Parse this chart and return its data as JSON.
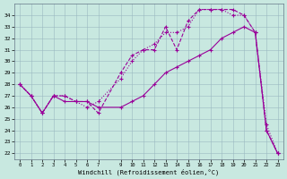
{
  "xlabel": "Windchill (Refroidissement éolien,°C)",
  "bg_color": "#c8e8e0",
  "grid_color": "#9ab8c0",
  "line_color": "#990099",
  "xlim": [
    -0.5,
    23.5
  ],
  "ylim": [
    21.5,
    35.0
  ],
  "yticks": [
    22,
    23,
    24,
    25,
    26,
    27,
    28,
    29,
    30,
    31,
    32,
    33,
    34
  ],
  "xticks": [
    0,
    1,
    2,
    3,
    4,
    5,
    6,
    7,
    9,
    10,
    11,
    12,
    13,
    14,
    15,
    16,
    17,
    18,
    19,
    20,
    21,
    22,
    23
  ],
  "line1_x": [
    0,
    1,
    2,
    3,
    4,
    5,
    6,
    7,
    9,
    10,
    11,
    12,
    13,
    14,
    15,
    16,
    17,
    18,
    19,
    20,
    21,
    22,
    23
  ],
  "line1_y": [
    28.0,
    27.0,
    25.5,
    27.0,
    26.5,
    26.5,
    26.5,
    26.0,
    26.0,
    26.5,
    27.0,
    28.0,
    29.0,
    29.5,
    30.0,
    30.5,
    31.0,
    32.0,
    32.5,
    33.0,
    32.5,
    24.0,
    22.0
  ],
  "line2_x": [
    0,
    1,
    2,
    3,
    4,
    5,
    6,
    7,
    9,
    10,
    11,
    12,
    13,
    14,
    15,
    16,
    17,
    18,
    19,
    20,
    21,
    22,
    23
  ],
  "line2_y": [
    28.0,
    27.0,
    25.5,
    27.0,
    27.0,
    26.5,
    26.5,
    25.5,
    29.0,
    30.5,
    31.0,
    31.0,
    33.0,
    31.0,
    33.5,
    34.5,
    34.5,
    34.5,
    34.5,
    34.0,
    32.5,
    24.0,
    22.0
  ],
  "line3_x": [
    0,
    1,
    2,
    3,
    4,
    5,
    6,
    7,
    9,
    10,
    11,
    12,
    13,
    14,
    15,
    16,
    17,
    18,
    19,
    20,
    21,
    22,
    23
  ],
  "line3_y": [
    28.0,
    27.0,
    25.5,
    27.0,
    27.0,
    26.5,
    26.0,
    26.5,
    28.5,
    30.0,
    31.0,
    31.5,
    32.5,
    32.5,
    33.0,
    34.5,
    34.5,
    34.5,
    34.0,
    34.0,
    32.5,
    24.5,
    22.0
  ]
}
